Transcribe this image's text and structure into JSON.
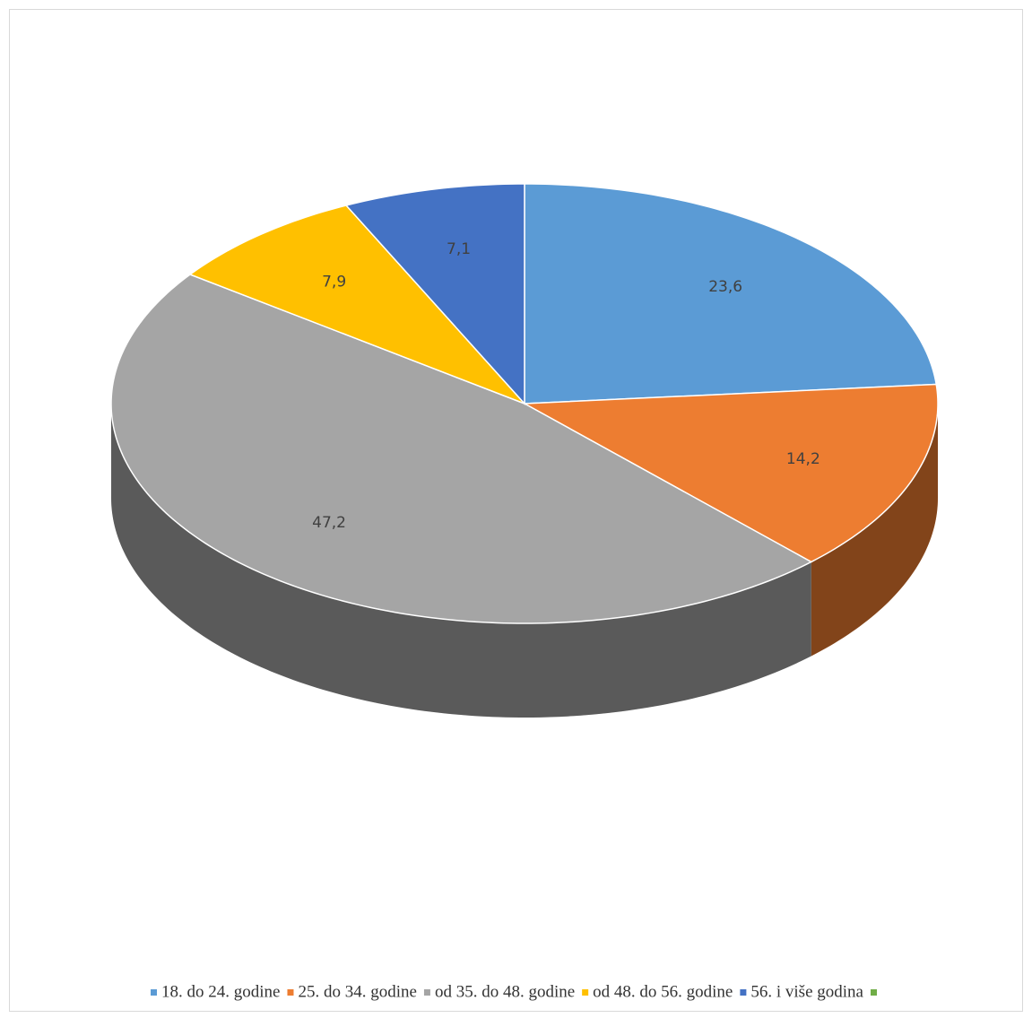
{
  "chart_data": {
    "type": "pie",
    "categories": [
      "18. do 24. godine",
      "25. do 34. godine",
      "od 35. do 48. godine",
      "od 48. do 56. godine",
      "56. i više godina",
      null
    ],
    "values": [
      23.6,
      14.2,
      47.2,
      7.9,
      7.1,
      null
    ],
    "value_labels": [
      "23,6",
      "14,2",
      "47,2",
      "7,9",
      "7,1",
      null
    ],
    "colors": [
      "#5b9bd5",
      "#ed7d31",
      "#a5a5a5",
      "#ffc000",
      "#4472c4",
      "#70ad47"
    ]
  }
}
